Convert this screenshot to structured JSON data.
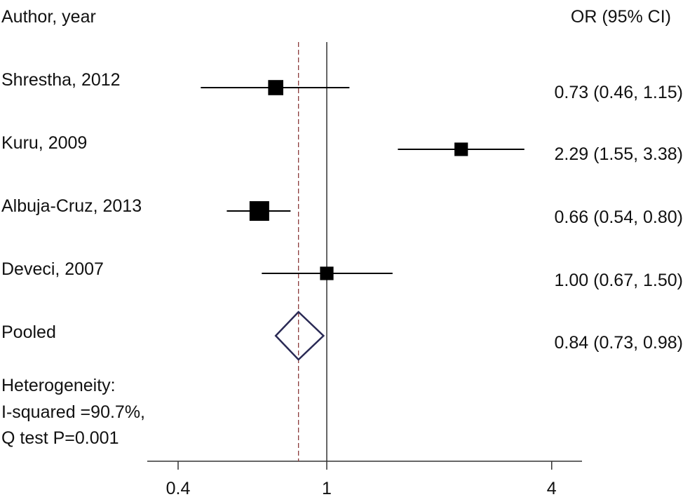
{
  "chart_data": {
    "type": "forest",
    "scale": "log",
    "col_study_header": "Author, year",
    "col_effect_header": "OR (95% CI)",
    "studies": [
      {
        "label": "Shrestha, 2012",
        "or": 0.73,
        "lo": 0.46,
        "hi": 1.15,
        "text": "0.73 (0.46, 1.15)",
        "weight": 0.6
      },
      {
        "label": "Kuru, 2009",
        "or": 2.29,
        "lo": 1.55,
        "hi": 3.38,
        "text": "2.29 (1.55, 3.38)",
        "weight": 0.45
      },
      {
        "label": "Albuja-Cruz, 2013",
        "or": 0.66,
        "lo": 0.54,
        "hi": 0.8,
        "text": "0.66 (0.54, 0.80)",
        "weight": 1.0
      },
      {
        "label": "Deveci, 2007",
        "or": 1.0,
        "lo": 0.67,
        "hi": 1.5,
        "text": "1.00 (0.67, 1.50)",
        "weight": 0.45
      }
    ],
    "pooled": {
      "label": "Pooled",
      "or": 0.84,
      "lo": 0.73,
      "hi": 0.98,
      "text": "0.84 (0.73, 0.98)"
    },
    "heterogeneity": [
      "Heterogeneity:",
      "I-squared =90.7%,",
      "Q test P=0.001"
    ],
    "x_ticks": [
      {
        "value": 0.4,
        "label": "0.4"
      },
      {
        "value": 1,
        "label": "1"
      },
      {
        "value": 4,
        "label": "4"
      }
    ],
    "reference_line": 1,
    "pooled_line": 0.84,
    "colors": {
      "marker": "#000000",
      "diamond": "#2a2a55",
      "pooled_line": "#8b3a3a",
      "axis": "#333333"
    }
  }
}
